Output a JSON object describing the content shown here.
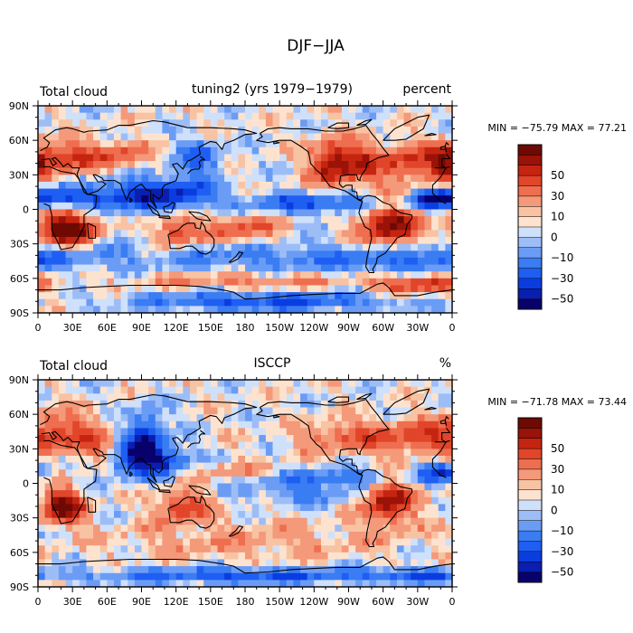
{
  "figure_title": "DJF−JJA",
  "colors": {
    "levels": [
      -60,
      -50,
      -40,
      -30,
      -20,
      -10,
      -5,
      0,
      5,
      10,
      20,
      30,
      40,
      50,
      60
    ],
    "palette": [
      "#08006b",
      "#0a1fb0",
      "#0a3de0",
      "#1f5ef2",
      "#3a7cf2",
      "#6b9cf5",
      "#9dbdf7",
      "#cfe0fb",
      "#fde3cf",
      "#f8c3a3",
      "#f4997a",
      "#ee6e4f",
      "#e1452a",
      "#c52510",
      "#9a1208",
      "#6e0a03"
    ],
    "coast": "#000000"
  },
  "chart_data": [
    {
      "type": "heatmap",
      "left_label": "Total cloud",
      "center_label": "tuning2 (yrs 1979−1979)",
      "right_label": "percent",
      "min_max_text": "MIN = −75.79 MAX =  77.21",
      "min": -75.79,
      "max": 77.21,
      "xlabel": "",
      "ylabel": "",
      "xlim": [
        0,
        360
      ],
      "ylim": [
        -90,
        90
      ],
      "x_ticks": [
        "0",
        "30E",
        "60E",
        "90E",
        "120E",
        "150E",
        "180",
        "150W",
        "120W",
        "90W",
        "60W",
        "30W",
        "0"
      ],
      "y_ticks": [
        "90N",
        "60N",
        "30N",
        "0",
        "30S",
        "60S",
        "90S"
      ],
      "colorbar_labels": [
        "50",
        "30",
        "10",
        "0",
        "−10",
        "−30",
        "−50"
      ],
      "anomalies": [
        [
          25,
          -18,
          18,
          12,
          70
        ],
        [
          120,
          -20,
          12,
          10,
          40
        ],
        [
          175,
          -18,
          25,
          10,
          35
        ],
        [
          305,
          -12,
          18,
          15,
          60
        ],
        [
          25,
          45,
          25,
          10,
          40
        ],
        [
          75,
          47,
          15,
          8,
          25
        ],
        [
          255,
          40,
          12,
          14,
          55
        ],
        [
          280,
          40,
          12,
          12,
          35
        ],
        [
          320,
          40,
          20,
          12,
          40
        ],
        [
          355,
          40,
          10,
          10,
          40
        ],
        [
          20,
          10,
          25,
          6,
          -40
        ],
        [
          80,
          12,
          25,
          10,
          -45
        ],
        [
          125,
          15,
          20,
          10,
          -40
        ],
        [
          250,
          5,
          60,
          6,
          -40
        ],
        [
          345,
          10,
          15,
          6,
          -40
        ],
        [
          140,
          45,
          15,
          10,
          -30
        ],
        [
          180,
          -40,
          60,
          10,
          -25
        ],
        [
          300,
          -45,
          40,
          8,
          -30
        ],
        [
          20,
          -40,
          40,
          8,
          -30
        ],
        [
          200,
          -80,
          80,
          6,
          -40
        ],
        [
          330,
          -65,
          30,
          6,
          40
        ],
        [
          180,
          -62,
          60,
          5,
          25
        ]
      ]
    },
    {
      "type": "heatmap",
      "left_label": "Total cloud",
      "center_label": "ISCCP",
      "right_label": "%",
      "min_max_text": "MIN = −71.78 MAX =  73.44",
      "min": -71.78,
      "max": 73.44,
      "xlabel": "",
      "ylabel": "",
      "xlim": [
        0,
        360
      ],
      "ylim": [
        -90,
        90
      ],
      "x_ticks": [
        "0",
        "30E",
        "60E",
        "90E",
        "120E",
        "150E",
        "180",
        "150W",
        "120W",
        "90W",
        "60W",
        "30W",
        "0"
      ],
      "y_ticks": [
        "90N",
        "60N",
        "30N",
        "0",
        "30S",
        "60S",
        "90S"
      ],
      "colorbar_labels": [
        "50",
        "30",
        "10",
        "0",
        "−10",
        "−30",
        "−50"
      ],
      "anomalies": [
        [
          22,
          -20,
          12,
          10,
          70
        ],
        [
          125,
          -20,
          15,
          10,
          40
        ],
        [
          305,
          -15,
          15,
          15,
          55
        ],
        [
          20,
          45,
          25,
          12,
          35
        ],
        [
          270,
          40,
          30,
          10,
          30
        ],
        [
          330,
          40,
          25,
          10,
          30
        ],
        [
          60,
          30,
          20,
          8,
          30
        ],
        [
          80,
          25,
          15,
          12,
          -55
        ],
        [
          110,
          20,
          15,
          10,
          -45
        ],
        [
          95,
          45,
          10,
          15,
          -40
        ],
        [
          255,
          5,
          50,
          6,
          -35
        ],
        [
          350,
          10,
          12,
          6,
          -40
        ],
        [
          180,
          -50,
          80,
          12,
          15
        ],
        [
          180,
          -80,
          90,
          5,
          -40
        ],
        [
          330,
          -80,
          30,
          4,
          -30
        ],
        [
          180,
          10,
          40,
          5,
          20
        ],
        [
          230,
          -10,
          30,
          6,
          -20
        ]
      ]
    }
  ],
  "coastlines": [
    [
      [
        345,
        36
      ],
      [
        355,
        36
      ],
      [
        5,
        37
      ],
      [
        10,
        37
      ],
      [
        20,
        33
      ],
      [
        32,
        31
      ],
      [
        35,
        27
      ],
      [
        43,
        13
      ],
      [
        51,
        12
      ],
      [
        50,
        2
      ],
      [
        40,
        -5
      ],
      [
        40,
        -15
      ],
      [
        35,
        -25
      ],
      [
        30,
        -33
      ],
      [
        20,
        -35
      ],
      [
        18,
        -30
      ],
      [
        12,
        -18
      ],
      [
        12,
        -5
      ],
      [
        10,
        3
      ],
      [
        5,
        5
      ],
      [
        -5,
        5
      ],
      [
        -10,
        7
      ],
      [
        -17,
        14
      ],
      [
        -17,
        21
      ],
      [
        -10,
        28
      ],
      [
        -6,
        35
      ],
      [
        -5,
        36
      ]
    ],
    [
      [
        -9,
        38
      ],
      [
        -9,
        44
      ],
      [
        -2,
        44
      ],
      [
        -5,
        48
      ],
      [
        2,
        51
      ],
      [
        8,
        54
      ],
      [
        10,
        58
      ],
      [
        5,
        62
      ],
      [
        15,
        69
      ],
      [
        25,
        71
      ],
      [
        30,
        70
      ],
      [
        40,
        67
      ],
      [
        44,
        68
      ],
      [
        60,
        69
      ],
      [
        70,
        73
      ],
      [
        80,
        73
      ],
      [
        100,
        77
      ],
      [
        110,
        76
      ],
      [
        130,
        71
      ],
      [
        150,
        71
      ],
      [
        170,
        70
      ],
      [
        180,
        69
      ],
      [
        190,
        66
      ],
      [
        180,
        65
      ],
      [
        170,
        60
      ],
      [
        162,
        57
      ],
      [
        160,
        52
      ],
      [
        155,
        58
      ],
      [
        150,
        59
      ],
      [
        140,
        54
      ],
      [
        141,
        48
      ],
      [
        133,
        43
      ],
      [
        130,
        42
      ],
      [
        127,
        37
      ],
      [
        126,
        35
      ],
      [
        121,
        40
      ],
      [
        117,
        39
      ],
      [
        122,
        31
      ],
      [
        120,
        25
      ],
      [
        110,
        21
      ],
      [
        108,
        18
      ],
      [
        108,
        12
      ],
      [
        105,
        9
      ],
      [
        100,
        13
      ],
      [
        100,
        8
      ],
      [
        103,
        1
      ],
      [
        98,
        8
      ],
      [
        98,
        16
      ],
      [
        94,
        17
      ],
      [
        90,
        22
      ],
      [
        86,
        20
      ],
      [
        80,
        15
      ],
      [
        77,
        8
      ],
      [
        73,
        18
      ],
      [
        72,
        22
      ],
      [
        67,
        25
      ],
      [
        57,
        25
      ],
      [
        56,
        27
      ],
      [
        50,
        30
      ],
      [
        48,
        30
      ],
      [
        52,
        24
      ],
      [
        56,
        24
      ],
      [
        59,
        22
      ],
      [
        52,
        16
      ],
      [
        43,
        13
      ],
      [
        40,
        15
      ],
      [
        35,
        28
      ],
      [
        34,
        31
      ],
      [
        36,
        36
      ],
      [
        30,
        36
      ],
      [
        26,
        40
      ],
      [
        22,
        37
      ],
      [
        20,
        40
      ],
      [
        15,
        45
      ],
      [
        12,
        44
      ],
      [
        16,
        40
      ],
      [
        13,
        38
      ],
      [
        10,
        44
      ],
      [
        3,
        43
      ],
      [
        -2,
        37
      ],
      [
        -6,
        36
      ],
      [
        -9,
        38
      ]
    ],
    [
      [
        113,
        -22
      ],
      [
        114,
        -26
      ],
      [
        115,
        -34
      ],
      [
        123,
        -34
      ],
      [
        129,
        -32
      ],
      [
        134,
        -32
      ],
      [
        138,
        -35
      ],
      [
        141,
        -38
      ],
      [
        146,
        -39
      ],
      [
        150,
        -37
      ],
      [
        153,
        -32
      ],
      [
        153,
        -26
      ],
      [
        150,
        -22
      ],
      [
        146,
        -19
      ],
      [
        145,
        -15
      ],
      [
        142,
        -11
      ],
      [
        141,
        -17
      ],
      [
        137,
        -16
      ],
      [
        136,
        -12
      ],
      [
        130,
        -12
      ],
      [
        126,
        -14
      ],
      [
        122,
        -18
      ],
      [
        113,
        -22
      ]
    ],
    [
      [
        193,
        66
      ],
      [
        200,
        70
      ],
      [
        210,
        71
      ],
      [
        220,
        70
      ],
      [
        235,
        70
      ],
      [
        250,
        68
      ],
      [
        265,
        68
      ],
      [
        275,
        70
      ],
      [
        285,
        73
      ],
      [
        290,
        66
      ],
      [
        295,
        60
      ],
      [
        300,
        53
      ],
      [
        305,
        47
      ],
      [
        296,
        45
      ],
      [
        290,
        42
      ],
      [
        286,
        40
      ],
      [
        285,
        35
      ],
      [
        282,
        31
      ],
      [
        280,
        27
      ],
      [
        280,
        25
      ],
      [
        278,
        26
      ],
      [
        277,
        30
      ],
      [
        270,
        30
      ],
      [
        263,
        29
      ],
      [
        262,
        22
      ],
      [
        265,
        19
      ],
      [
        268,
        21
      ],
      [
        273,
        21
      ],
      [
        273,
        16
      ],
      [
        277,
        15
      ],
      [
        278,
        9
      ],
      [
        281,
        8
      ],
      [
        283,
        11
      ],
      [
        287,
        12
      ],
      [
        293,
        11
      ],
      [
        300,
        6
      ],
      [
        306,
        4
      ],
      [
        310,
        0
      ],
      [
        315,
        -3
      ],
      [
        325,
        -5
      ],
      [
        325,
        -8
      ],
      [
        321,
        -13
      ],
      [
        319,
        -22
      ],
      [
        312,
        -25
      ],
      [
        310,
        -28
      ],
      [
        305,
        -34
      ],
      [
        302,
        -38
      ],
      [
        295,
        -42
      ],
      [
        294,
        -47
      ],
      [
        291,
        -52
      ],
      [
        292,
        -55
      ],
      [
        288,
        -55
      ],
      [
        285,
        -50
      ],
      [
        286,
        -42
      ],
      [
        288,
        -33
      ],
      [
        290,
        -25
      ],
      [
        289,
        -18
      ],
      [
        284,
        -15
      ],
      [
        281,
        -8
      ],
      [
        279,
        -3
      ],
      [
        280,
        1
      ],
      [
        282,
        7
      ],
      [
        279,
        8
      ],
      [
        272,
        13
      ],
      [
        267,
        16
      ],
      [
        254,
        20
      ],
      [
        250,
        25
      ],
      [
        246,
        31
      ],
      [
        242,
        34
      ],
      [
        237,
        40
      ],
      [
        236,
        46
      ],
      [
        235,
        50
      ],
      [
        228,
        55
      ],
      [
        220,
        60
      ],
      [
        210,
        60
      ],
      [
        200,
        58
      ],
      [
        190,
        60
      ],
      [
        195,
        63
      ],
      [
        193,
        66
      ]
    ],
    [
      [
        300,
        60
      ],
      [
        305,
        65
      ],
      [
        310,
        70
      ],
      [
        320,
        75
      ],
      [
        330,
        80
      ],
      [
        340,
        82
      ],
      [
        335,
        70
      ],
      [
        320,
        61
      ],
      [
        310,
        60
      ],
      [
        300,
        60
      ]
    ],
    [
      [
        0,
        -70
      ],
      [
        20,
        -70
      ],
      [
        40,
        -68
      ],
      [
        60,
        -67
      ],
      [
        80,
        -66
      ],
      [
        100,
        -66
      ],
      [
        120,
        -66
      ],
      [
        140,
        -67
      ],
      [
        160,
        -70
      ],
      [
        170,
        -72
      ],
      [
        180,
        -78
      ],
      [
        200,
        -77
      ],
      [
        220,
        -75
      ],
      [
        240,
        -74
      ],
      [
        260,
        -73
      ],
      [
        280,
        -73
      ],
      [
        295,
        -65
      ],
      [
        300,
        -64
      ],
      [
        305,
        -68
      ],
      [
        310,
        -75
      ],
      [
        330,
        -75
      ],
      [
        345,
        -72
      ],
      [
        360,
        -70
      ]
    ],
    [
      [
        130,
        31
      ],
      [
        133,
        34
      ],
      [
        136,
        35
      ],
      [
        140,
        35
      ],
      [
        141,
        38
      ],
      [
        140,
        41
      ],
      [
        142,
        43
      ],
      [
        145,
        43
      ],
      [
        141,
        46
      ]
    ],
    [
      [
        95,
        5
      ],
      [
        100,
        1
      ],
      [
        104,
        -2
      ],
      [
        106,
        -6
      ],
      [
        100,
        -3
      ],
      [
        95,
        5
      ]
    ],
    [
      [
        105,
        -7
      ],
      [
        115,
        -8
      ],
      [
        114,
        -6
      ],
      [
        105,
        -6
      ]
    ],
    [
      [
        109,
        2
      ],
      [
        113,
        3
      ],
      [
        117,
        6
      ],
      [
        119,
        5
      ],
      [
        116,
        -3
      ],
      [
        110,
        -2
      ],
      [
        109,
        2
      ]
    ],
    [
      [
        131,
        -2
      ],
      [
        140,
        -3
      ],
      [
        147,
        -6
      ],
      [
        150,
        -10
      ],
      [
        142,
        -9
      ],
      [
        138,
        -8
      ],
      [
        131,
        -2
      ]
    ],
    [
      [
        43,
        -12
      ],
      [
        50,
        -15
      ],
      [
        50,
        -25
      ],
      [
        44,
        -25
      ],
      [
        43,
        -12
      ]
    ],
    [
      [
        -5,
        50
      ],
      [
        1,
        51
      ],
      [
        -3,
        56
      ],
      [
        -5,
        58
      ],
      [
        -6,
        55
      ],
      [
        -5,
        50
      ]
    ],
    [
      [
        -10,
        52
      ],
      [
        -6,
        52
      ],
      [
        -6,
        55
      ],
      [
        -10,
        54
      ],
      [
        -10,
        52
      ]
    ],
    [
      [
        166,
        -46
      ],
      [
        172,
        -41
      ],
      [
        175,
        -37
      ],
      [
        178,
        -38
      ],
      [
        174,
        -43
      ],
      [
        168,
        -46
      ],
      [
        166,
        -46
      ]
    ],
    [
      [
        80,
        6
      ],
      [
        82,
        8
      ],
      [
        80,
        10
      ],
      [
        80,
        6
      ]
    ],
    [
      [
        -24,
        64
      ],
      [
        -14,
        65
      ],
      [
        -18,
        66
      ],
      [
        -24,
        64
      ]
    ],
    [
      [
        252,
        71
      ],
      [
        260,
        75
      ],
      [
        270,
        75
      ],
      [
        270,
        71
      ],
      [
        260,
        70
      ],
      [
        252,
        71
      ]
    ],
    [
      [
        277,
        73
      ],
      [
        285,
        77
      ],
      [
        290,
        78
      ],
      [
        285,
        74
      ],
      [
        277,
        73
      ]
    ],
    [
      [
        210,
        58
      ],
      [
        205,
        57
      ],
      [
        205,
        59
      ],
      [
        210,
        58
      ]
    ]
  ]
}
